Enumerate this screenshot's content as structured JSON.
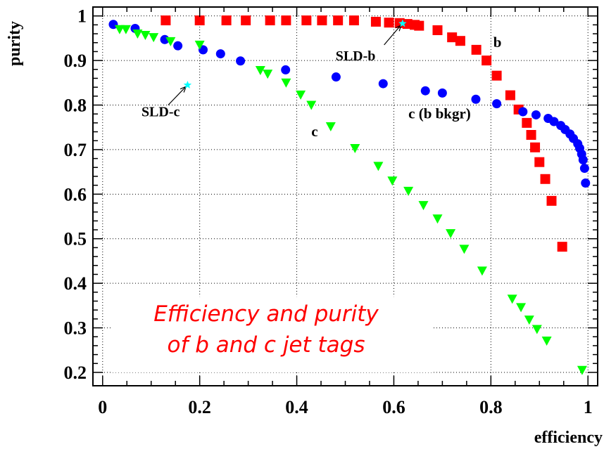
{
  "chart_data": {
    "type": "scatter",
    "xlabel": "efficiency",
    "ylabel": "purity",
    "xlim": [
      -0.02,
      1.02
    ],
    "ylim": [
      0.17,
      1.02
    ],
    "xticks": [
      "0",
      "0.2",
      "0.4",
      "0.6",
      "0.8",
      "1"
    ],
    "yticks": [
      "0.2",
      "0.3",
      "0.4",
      "0.5",
      "0.6",
      "0.7",
      "0.8",
      "0.9",
      "1"
    ],
    "grid": true,
    "caption_line1": "Efficiency and purity",
    "caption_line2": "of b and c jet tags",
    "colors": {
      "b": "#ff0000",
      "c_bkgr": "#0000ff",
      "c": "#00ff00",
      "sld": "#00ffff",
      "caption": "#ff0000"
    },
    "series": [
      {
        "name": "b",
        "marker": "square",
        "points": [
          [
            0.13,
            0.99
          ],
          [
            0.2,
            0.99
          ],
          [
            0.255,
            0.99
          ],
          [
            0.295,
            0.99
          ],
          [
            0.345,
            0.99
          ],
          [
            0.378,
            0.99
          ],
          [
            0.42,
            0.99
          ],
          [
            0.452,
            0.99
          ],
          [
            0.485,
            0.99
          ],
          [
            0.518,
            0.99
          ],
          [
            0.563,
            0.987
          ],
          [
            0.59,
            0.985
          ],
          [
            0.612,
            0.984
          ],
          [
            0.628,
            0.982
          ],
          [
            0.643,
            0.98
          ],
          [
            0.652,
            0.978
          ],
          [
            0.69,
            0.968
          ],
          [
            0.72,
            0.952
          ],
          [
            0.737,
            0.944
          ],
          [
            0.77,
            0.924
          ],
          [
            0.791,
            0.9
          ],
          [
            0.812,
            0.866
          ],
          [
            0.84,
            0.822
          ],
          [
            0.857,
            0.79
          ],
          [
            0.874,
            0.76
          ],
          [
            0.883,
            0.733
          ],
          [
            0.891,
            0.705
          ],
          [
            0.9,
            0.672
          ],
          [
            0.912,
            0.634
          ],
          [
            0.925,
            0.585
          ],
          [
            0.947,
            0.482
          ]
        ]
      },
      {
        "name": "c (b bkgr)",
        "marker": "circle",
        "points": [
          [
            0.022,
            0.981
          ],
          [
            0.067,
            0.972
          ],
          [
            0.128,
            0.947
          ],
          [
            0.155,
            0.933
          ],
          [
            0.207,
            0.924
          ],
          [
            0.243,
            0.915
          ],
          [
            0.284,
            0.899
          ],
          [
            0.377,
            0.879
          ],
          [
            0.481,
            0.863
          ],
          [
            0.578,
            0.848
          ],
          [
            0.665,
            0.832
          ],
          [
            0.7,
            0.827
          ],
          [
            0.769,
            0.813
          ],
          [
            0.812,
            0.803
          ],
          [
            0.866,
            0.785
          ],
          [
            0.893,
            0.778
          ],
          [
            0.918,
            0.77
          ],
          [
            0.93,
            0.763
          ],
          [
            0.944,
            0.754
          ],
          [
            0.953,
            0.745
          ],
          [
            0.963,
            0.735
          ],
          [
            0.97,
            0.725
          ],
          [
            0.979,
            0.713
          ],
          [
            0.983,
            0.703
          ],
          [
            0.987,
            0.69
          ],
          [
            0.99,
            0.677
          ],
          [
            0.993,
            0.658
          ],
          [
            0.995,
            0.625
          ]
        ]
      },
      {
        "name": "c",
        "marker": "triangle-down",
        "points": [
          [
            0.035,
            0.97
          ],
          [
            0.048,
            0.97
          ],
          [
            0.072,
            0.96
          ],
          [
            0.088,
            0.957
          ],
          [
            0.105,
            0.952
          ],
          [
            0.14,
            0.943
          ],
          [
            0.2,
            0.935
          ],
          [
            0.325,
            0.878
          ],
          [
            0.34,
            0.87
          ],
          [
            0.378,
            0.85
          ],
          [
            0.408,
            0.823
          ],
          [
            0.43,
            0.8
          ],
          [
            0.47,
            0.752
          ],
          [
            0.52,
            0.703
          ],
          [
            0.568,
            0.663
          ],
          [
            0.597,
            0.63
          ],
          [
            0.63,
            0.607
          ],
          [
            0.661,
            0.575
          ],
          [
            0.69,
            0.545
          ],
          [
            0.717,
            0.512
          ],
          [
            0.745,
            0.477
          ],
          [
            0.782,
            0.428
          ],
          [
            0.844,
            0.365
          ],
          [
            0.862,
            0.346
          ],
          [
            0.879,
            0.318
          ],
          [
            0.895,
            0.297
          ],
          [
            0.915,
            0.271
          ],
          [
            0.988,
            0.205
          ]
        ]
      }
    ],
    "series_labels": [
      {
        "text": "b",
        "x": 0.805,
        "y": 0.93
      },
      {
        "text": "c (b bkgr)",
        "x": 0.63,
        "y": 0.77
      },
      {
        "text": "c",
        "x": 0.43,
        "y": 0.73
      }
    ],
    "annotations": [
      {
        "text": "SLD-c",
        "x": 0.175,
        "y": 0.845,
        "label_x": 0.08,
        "label_y": 0.775,
        "arrow_from": [
          0.135,
          0.8
        ]
      },
      {
        "text": "SLD-b",
        "x": 0.618,
        "y": 0.983,
        "label_x": 0.48,
        "label_y": 0.9,
        "arrow_from": [
          0.58,
          0.935
        ]
      }
    ]
  }
}
